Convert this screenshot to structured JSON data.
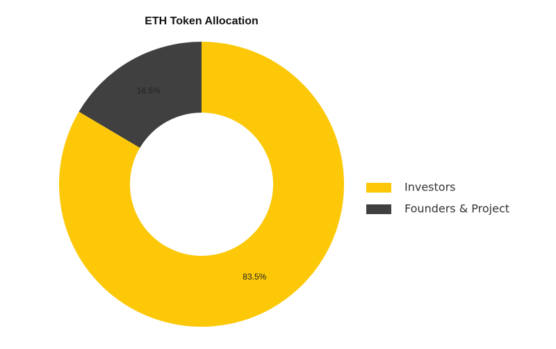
{
  "chart_data": {
    "type": "donut",
    "title": "ETH Token Allocation",
    "categories": [
      "Investors",
      "Founders & Project"
    ],
    "values": [
      83.5,
      16.5
    ],
    "value_labels": [
      "83.5%",
      "16.5%"
    ],
    "colors": [
      "#fcc808",
      "#404040"
    ],
    "legend": "right"
  }
}
